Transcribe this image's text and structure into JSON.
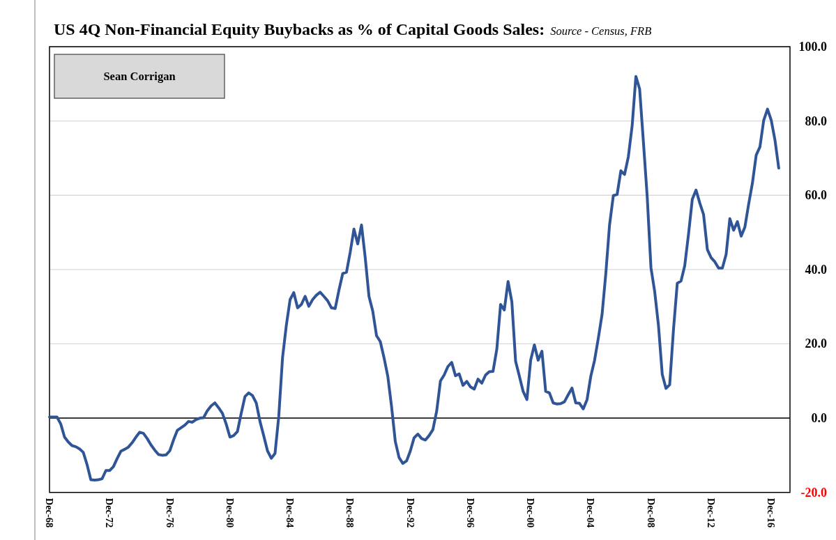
{
  "chart_data": {
    "type": "line",
    "title": "US 4Q Non-Financial Equity Buybacks as % of Capital Goods Sales:",
    "subtitle": "Source - Census, FRB",
    "annotations": [
      "Sean Corrigan"
    ],
    "x": [
      "1968-12",
      "1969-03",
      "1969-06",
      "1969-09",
      "1969-12",
      "1970-03",
      "1970-06",
      "1970-09",
      "1970-12",
      "1971-03",
      "1971-06",
      "1971-09",
      "1971-12",
      "1972-03",
      "1972-06",
      "1972-09",
      "1972-12",
      "1973-03",
      "1973-06",
      "1973-09",
      "1973-12",
      "1974-03",
      "1974-06",
      "1974-09",
      "1974-12",
      "1975-03",
      "1975-06",
      "1975-09",
      "1975-12",
      "1976-03",
      "1976-06",
      "1976-09",
      "1976-12",
      "1977-03",
      "1977-06",
      "1977-09",
      "1977-12",
      "1978-03",
      "1978-06",
      "1978-09",
      "1978-12",
      "1979-03",
      "1979-06",
      "1979-09",
      "1979-12",
      "1980-03",
      "1980-06",
      "1980-09",
      "1980-12",
      "1981-03",
      "1981-06",
      "1981-09",
      "1981-12",
      "1982-03",
      "1982-06",
      "1982-09",
      "1982-12",
      "1983-03",
      "1983-06",
      "1983-09",
      "1983-12",
      "1984-03",
      "1984-06",
      "1984-09",
      "1984-12",
      "1985-03",
      "1985-06",
      "1985-09",
      "1985-12",
      "1986-03",
      "1986-06",
      "1986-09",
      "1986-12",
      "1987-03",
      "1987-06",
      "1987-09",
      "1987-12",
      "1988-03",
      "1988-06",
      "1988-09",
      "1988-12",
      "1989-03",
      "1989-06",
      "1989-09",
      "1989-12",
      "1990-03",
      "1990-06",
      "1990-09",
      "1990-12",
      "1991-03",
      "1991-06",
      "1991-09",
      "1991-12",
      "1992-03",
      "1992-06",
      "1992-09",
      "1992-12",
      "1993-03",
      "1993-06",
      "1993-09",
      "1993-12",
      "1994-03",
      "1994-06",
      "1994-09",
      "1994-12",
      "1995-03",
      "1995-06",
      "1995-09",
      "1995-12",
      "1996-03",
      "1996-06",
      "1996-09",
      "1996-12",
      "1997-03",
      "1997-06",
      "1997-09",
      "1997-12",
      "1998-03",
      "1998-06",
      "1998-09",
      "1998-12",
      "1999-03",
      "1999-06",
      "1999-09",
      "1999-12",
      "2000-03",
      "2000-06",
      "2000-09",
      "2000-12",
      "2001-03",
      "2001-06",
      "2001-09",
      "2001-12",
      "2002-03",
      "2002-06",
      "2002-09",
      "2002-12",
      "2003-03",
      "2003-06",
      "2003-09",
      "2003-12",
      "2004-03",
      "2004-06",
      "2004-09",
      "2004-12",
      "2005-03",
      "2005-06",
      "2005-09",
      "2005-12",
      "2006-03",
      "2006-06",
      "2006-09",
      "2006-12",
      "2007-03",
      "2007-06",
      "2007-09",
      "2007-12",
      "2008-03",
      "2008-06",
      "2008-09",
      "2008-12",
      "2009-03",
      "2009-06",
      "2009-09",
      "2009-12",
      "2010-03",
      "2010-06",
      "2010-09",
      "2010-12",
      "2011-03",
      "2011-06",
      "2011-09",
      "2011-12",
      "2012-03",
      "2012-06",
      "2012-09",
      "2012-12",
      "2013-03",
      "2013-06",
      "2013-09",
      "2013-12",
      "2014-03",
      "2014-06",
      "2014-09",
      "2014-12",
      "2015-03",
      "2015-06",
      "2015-09",
      "2015-12",
      "2016-03",
      "2016-06",
      "2016-09",
      "2016-12",
      "2017-03",
      "2017-06"
    ],
    "series": [
      {
        "color": "#2f5597",
        "values": [
          0.3,
          0.3,
          0.3,
          -1.6,
          -5.1,
          -6.4,
          -7.4,
          -7.7,
          -8.3,
          -9.2,
          -12.5,
          -16.6,
          -16.7,
          -16.6,
          -16.3,
          -14.1,
          -14.1,
          -13.1,
          -10.9,
          -8.9,
          -8.4,
          -7.8,
          -6.6,
          -5.1,
          -3.8,
          -4.1,
          -5.5,
          -7.2,
          -8.6,
          -9.8,
          -10.0,
          -9.9,
          -8.8,
          -5.9,
          -3.3,
          -2.6,
          -1.9,
          -0.9,
          -1.1,
          -0.4,
          0.0,
          0.1,
          2.0,
          3.3,
          4.1,
          2.8,
          1.3,
          -1.6,
          -5.1,
          -4.7,
          -3.6,
          1.3,
          5.8,
          6.8,
          6.1,
          4.1,
          -0.9,
          -4.7,
          -8.8,
          -10.8,
          -9.5,
          0.5,
          16.3,
          25.0,
          31.9,
          33.8,
          29.7,
          30.6,
          32.8,
          30.1,
          31.9,
          33.1,
          33.9,
          32.8,
          31.6,
          29.7,
          29.5,
          34.4,
          38.9,
          39.3,
          44.7,
          50.9,
          46.9,
          52.0,
          43.1,
          32.8,
          28.8,
          22.2,
          20.6,
          16.3,
          11.3,
          3.1,
          -6.3,
          -10.6,
          -12.2,
          -11.5,
          -8.8,
          -5.3,
          -4.3,
          -5.5,
          -5.9,
          -4.7,
          -3.1,
          1.9,
          10.0,
          11.6,
          13.9,
          15.0,
          11.4,
          11.9,
          8.8,
          9.9,
          8.4,
          7.8,
          10.5,
          9.4,
          11.6,
          12.5,
          12.6,
          18.6,
          30.6,
          29.1,
          36.8,
          31.3,
          15.3,
          11.3,
          7.2,
          5.0,
          15.6,
          19.7,
          15.6,
          18.0,
          7.2,
          6.8,
          4.1,
          3.8,
          3.9,
          4.4,
          6.3,
          8.1,
          4.1,
          4.0,
          2.5,
          5.0,
          11.3,
          15.5,
          21.5,
          28.0,
          39.0,
          52.0,
          59.9,
          60.2,
          66.6,
          65.6,
          70.4,
          78.7,
          92.0,
          88.6,
          74.3,
          59.6,
          40.5,
          34.1,
          25.0,
          11.8,
          8.0,
          9.0,
          23.8,
          36.3,
          36.9,
          41.0,
          49.5,
          58.9,
          61.4,
          57.9,
          54.8,
          45.4,
          43.2,
          42.1,
          40.4,
          40.4,
          44.1,
          53.7,
          50.6,
          52.9,
          49.0,
          51.4,
          57.6,
          63.3,
          70.8,
          73.0,
          80.2,
          83.2,
          80.2,
          74.9,
          67.3
        ]
      }
    ],
    "xlim": [
      "1968-12",
      "2018-03"
    ],
    "xticks": [
      {
        "value": "1968-12",
        "label": "Dec-68"
      },
      {
        "value": "1972-12",
        "label": "Dec-72"
      },
      {
        "value": "1976-12",
        "label": "Dec-76"
      },
      {
        "value": "1980-12",
        "label": "Dec-80"
      },
      {
        "value": "1984-12",
        "label": "Dec-84"
      },
      {
        "value": "1988-12",
        "label": "Dec-88"
      },
      {
        "value": "1992-12",
        "label": "Dec-92"
      },
      {
        "value": "1996-12",
        "label": "Dec-96"
      },
      {
        "value": "2000-12",
        "label": "Dec-00"
      },
      {
        "value": "2004-12",
        "label": "Dec-04"
      },
      {
        "value": "2008-12",
        "label": "Dec-08"
      },
      {
        "value": "2012-12",
        "label": "Dec-12"
      },
      {
        "value": "2016-12",
        "label": "Dec-16"
      }
    ],
    "ylim": [
      -20,
      100
    ],
    "yticks": [
      {
        "value": -20,
        "label": "-20.0"
      },
      {
        "value": 0,
        "label": "0.0"
      },
      {
        "value": 20,
        "label": "20.0"
      },
      {
        "value": 40,
        "label": "40.0"
      },
      {
        "value": 60,
        "label": "60.0"
      },
      {
        "value": 80,
        "label": "80.0"
      },
      {
        "value": 100,
        "label": "100.0"
      }
    ],
    "grid": "y",
    "ref_lines": [
      {
        "axis": "y",
        "value": 0,
        "color": "#000000"
      }
    ]
  }
}
